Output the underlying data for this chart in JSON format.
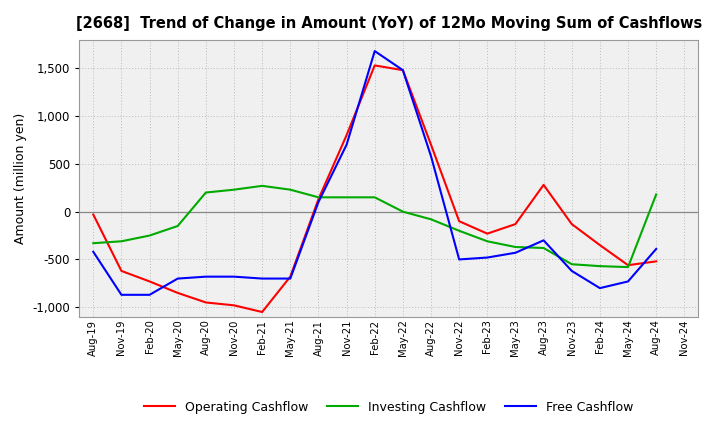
{
  "title": "[2668]  Trend of Change in Amount (YoY) of 12Mo Moving Sum of Cashflows",
  "ylabel": "Amount (million yen)",
  "x_labels": [
    "Aug-19",
    "Nov-19",
    "Feb-20",
    "May-20",
    "Aug-20",
    "Nov-20",
    "Feb-21",
    "May-21",
    "Aug-21",
    "Nov-21",
    "Feb-22",
    "May-22",
    "Aug-22",
    "Nov-22",
    "Feb-23",
    "May-23",
    "Aug-23",
    "Nov-23",
    "Feb-24",
    "May-24",
    "Aug-24",
    "Nov-24"
  ],
  "operating": [
    -30,
    -620,
    -730,
    -850,
    -950,
    -980,
    -1050,
    -680,
    130,
    800,
    1530,
    1480,
    700,
    -100,
    -230,
    -130,
    280,
    -130,
    -350,
    -560,
    -520,
    null
  ],
  "investing": [
    -330,
    -310,
    -250,
    -150,
    200,
    230,
    270,
    230,
    150,
    150,
    150,
    0,
    -80,
    -200,
    -310,
    -370,
    -380,
    -550,
    -570,
    -580,
    180,
    null
  ],
  "free": [
    -420,
    -870,
    -870,
    -700,
    -680,
    -680,
    -700,
    -700,
    100,
    700,
    1680,
    1480,
    580,
    -500,
    -480,
    -430,
    -300,
    -620,
    -800,
    -730,
    -390,
    null
  ],
  "colors": {
    "operating": "#ff0000",
    "investing": "#00aa00",
    "free": "#0000ff"
  },
  "ylim": [
    -1100,
    1800
  ],
  "yticks": [
    -1000,
    -500,
    0,
    500,
    1000,
    1500
  ],
  "background_color": "#ffffff",
  "plot_bg_color": "#f0f0f0",
  "grid_color": "#bbbbbb"
}
